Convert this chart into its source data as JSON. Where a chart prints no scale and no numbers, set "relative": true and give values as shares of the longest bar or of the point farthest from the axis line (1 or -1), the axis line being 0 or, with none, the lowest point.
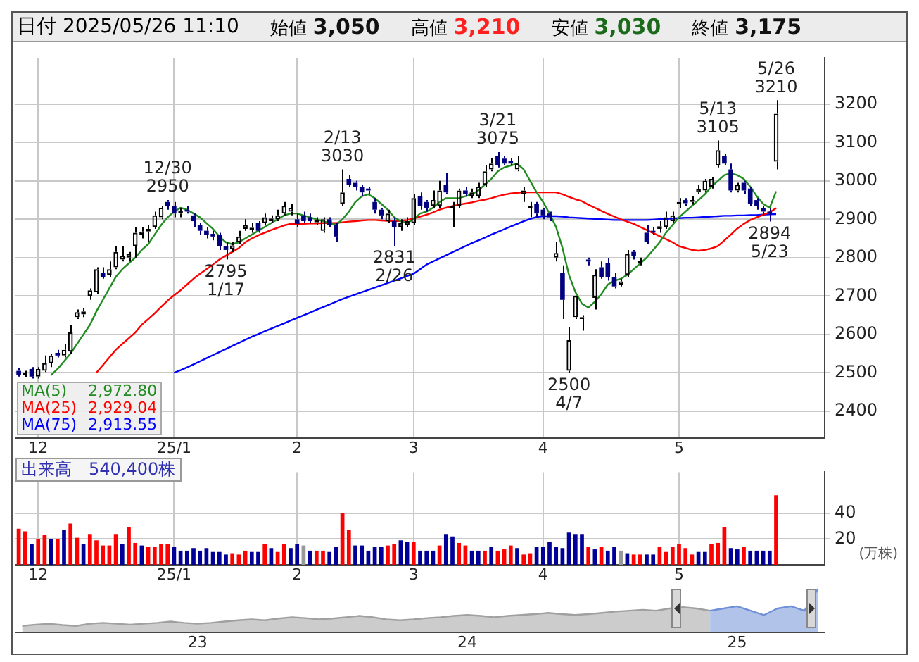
{
  "chart_data": [
    {
      "type": "other",
      "title": "日付 2025/05/26 11:10",
      "annotations": [
        "始値 3,050",
        "高値 3,210",
        "安値 3,030",
        "終値 3,175"
      ]
    },
    {
      "type": "candlestick",
      "categories": [
        null,
        null,
        null,
        "12",
        null,
        null,
        null,
        null,
        null,
        null,
        null,
        null,
        null,
        null,
        null,
        null,
        null,
        null,
        null,
        null,
        null,
        null,
        null,
        null,
        "25/1",
        null,
        null,
        null,
        null,
        null,
        null,
        null,
        null,
        null,
        null,
        null,
        null,
        null,
        null,
        null,
        null,
        null,
        null,
        "2",
        null,
        null,
        null,
        null,
        null,
        null,
        null,
        null,
        null,
        null,
        null,
        null,
        null,
        null,
        null,
        null,
        null,
        "3",
        null,
        null,
        null,
        null,
        null,
        null,
        null,
        null,
        null,
        null,
        null,
        null,
        null,
        null,
        null,
        null,
        null,
        null,
        null,
        "4",
        null,
        null,
        null,
        null,
        null,
        null,
        null,
        null,
        null,
        null,
        null,
        null,
        null,
        null,
        null,
        null,
        null,
        null,
        null,
        null,
        "5",
        null,
        null,
        null,
        null,
        null,
        null,
        null,
        null,
        null,
        null,
        null,
        null,
        null,
        null,
        null,
        null,
        null,
        null,
        null,
        null,
        null,
        null
      ],
      "ohlc": [
        [
          2505,
          2512,
          2490,
          2495
        ],
        [
          2495,
          2505,
          2488,
          2500
        ],
        [
          2510,
          2515,
          2485,
          2490
        ],
        [
          2490,
          2515,
          2485,
          2510
        ],
        [
          2505,
          2545,
          2502,
          2525
        ],
        [
          2525,
          2550,
          2515,
          2545
        ],
        [
          2552,
          2560,
          2540,
          2545
        ],
        [
          2545,
          2575,
          2540,
          2560
        ],
        [
          2555,
          2625,
          2550,
          2605
        ],
        [
          2645,
          2665,
          2640,
          2658
        ],
        [
          2652,
          2668,
          2645,
          2660
        ],
        [
          2700,
          2720,
          2690,
          2715
        ],
        [
          2710,
          2775,
          2705,
          2770
        ],
        [
          2760,
          2775,
          2745,
          2750
        ],
        [
          2755,
          2790,
          2750,
          2770
        ],
        [
          2775,
          2830,
          2770,
          2815
        ],
        [
          2795,
          2830,
          2790,
          2805
        ],
        [
          2800,
          2815,
          2790,
          2810
        ],
        [
          2830,
          2880,
          2800,
          2865
        ],
        [
          2860,
          2880,
          2850,
          2868
        ],
        [
          2868,
          2885,
          2840,
          2875
        ],
        [
          2880,
          2920,
          2875,
          2910
        ],
        [
          2905,
          2935,
          2900,
          2930
        ],
        [
          2945,
          2950,
          2925,
          2935
        ],
        [
          2935,
          2945,
          2905,
          2915
        ],
        [
          2915,
          2930,
          2905,
          2922
        ],
        [
          2925,
          2935,
          2915,
          2920
        ],
        [
          2910,
          2915,
          2880,
          2895
        ],
        [
          2885,
          2890,
          2860,
          2870
        ],
        [
          2870,
          2880,
          2850,
          2860
        ],
        [
          2862,
          2870,
          2845,
          2855
        ],
        [
          2860,
          2865,
          2820,
          2830
        ],
        [
          2830,
          2840,
          2795,
          2820
        ],
        [
          2822,
          2840,
          2815,
          2832
        ],
        [
          2840,
          2870,
          2835,
          2855
        ],
        [
          2875,
          2900,
          2870,
          2885
        ],
        [
          2872,
          2890,
          2865,
          2878
        ],
        [
          2890,
          2895,
          2865,
          2870
        ],
        [
          2890,
          2915,
          2885,
          2905
        ],
        [
          2895,
          2910,
          2890,
          2902
        ],
        [
          2900,
          2925,
          2895,
          2910
        ],
        [
          2915,
          2945,
          2910,
          2935
        ],
        [
          2920,
          2940,
          2910,
          2930
        ],
        [
          2900,
          2915,
          2880,
          2888
        ],
        [
          2910,
          2920,
          2890,
          2895
        ],
        [
          2905,
          2915,
          2890,
          2895
        ],
        [
          2892,
          2905,
          2885,
          2898
        ],
        [
          2870,
          2905,
          2865,
          2900
        ],
        [
          2900,
          2905,
          2880,
          2885
        ],
        [
          2885,
          2890,
          2840,
          2855
        ],
        [
          2940,
          3030,
          2935,
          2970
        ],
        [
          3005,
          3015,
          2985,
          2990
        ],
        [
          2995,
          3000,
          2975,
          2985
        ],
        [
          2985,
          2990,
          2960,
          2970
        ],
        [
          2980,
          2985,
          2965,
          2975
        ],
        [
          2945,
          2955,
          2915,
          2925
        ],
        [
          2925,
          2930,
          2900,
          2910
        ],
        [
          2895,
          2925,
          2890,
          2915
        ],
        [
          2895,
          2905,
          2831,
          2880
        ],
        [
          2880,
          2900,
          2870,
          2890
        ],
        [
          2885,
          2905,
          2880,
          2895
        ],
        [
          2890,
          2965,
          2885,
          2955
        ],
        [
          2960,
          2970,
          2925,
          2935
        ],
        [
          2945,
          2950,
          2920,
          2930
        ],
        [
          2935,
          2975,
          2930,
          2950
        ],
        [
          2935,
          3000,
          2930,
          2975
        ],
        [
          2990,
          3020,
          2965,
          2970
        ],
        [
          2930,
          2945,
          2880,
          2935
        ],
        [
          2935,
          2980,
          2930,
          2975
        ],
        [
          2975,
          2985,
          2960,
          2965
        ],
        [
          2960,
          2980,
          2955,
          2970
        ],
        [
          2960,
          2995,
          2955,
          2985
        ],
        [
          2990,
          3040,
          2985,
          3025
        ],
        [
          3030,
          3060,
          3025,
          3045
        ],
        [
          3065,
          3075,
          3035,
          3040
        ],
        [
          3058,
          3065,
          3040,
          3045
        ],
        [
          3052,
          3060,
          3040,
          3045
        ],
        [
          3030,
          3065,
          3025,
          3045
        ],
        [
          2965,
          2985,
          2945,
          2975
        ],
        [
          2930,
          2945,
          2905,
          2935
        ],
        [
          2940,
          2945,
          2905,
          2915
        ],
        [
          2925,
          2930,
          2900,
          2910
        ],
        [
          2915,
          2920,
          2895,
          2905
        ],
        [
          2800,
          2840,
          2790,
          2812
        ],
        [
          2760,
          2780,
          2640,
          2690
        ],
        [
          2505,
          2620,
          2500,
          2585
        ],
        [
          2645,
          2700,
          2640,
          2700
        ],
        [
          2640,
          2650,
          2610,
          2645
        ],
        [
          2795,
          2800,
          2780,
          2790
        ],
        [
          2695,
          2770,
          2665,
          2755
        ],
        [
          2775,
          2790,
          2745,
          2750
        ],
        [
          2785,
          2798,
          2740,
          2750
        ],
        [
          2750,
          2760,
          2720,
          2725
        ],
        [
          2730,
          2745,
          2725,
          2738
        ],
        [
          2755,
          2820,
          2750,
          2810
        ],
        [
          2815,
          2820,
          2795,
          2805
        ],
        [
          2785,
          2800,
          2780,
          2792
        ],
        [
          2865,
          2885,
          2835,
          2840
        ],
        [
          2870,
          2880,
          2860,
          2865
        ],
        [
          2875,
          2895,
          2865,
          2882
        ],
        [
          2880,
          2920,
          2875,
          2905
        ],
        [
          2895,
          2920,
          2890,
          2910
        ],
        [
          2940,
          2955,
          2930,
          2945
        ],
        [
          2950,
          2955,
          2935,
          2942
        ],
        [
          2945,
          2960,
          2938,
          2950
        ],
        [
          2970,
          2990,
          2965,
          2978
        ],
        [
          2975,
          3005,
          2970,
          3000
        ],
        [
          2985,
          3010,
          2980,
          3005
        ],
        [
          3040,
          3105,
          3035,
          3080
        ],
        [
          3065,
          3070,
          3040,
          3045
        ],
        [
          3030,
          3045,
          2970,
          2975
        ],
        [
          2975,
          2995,
          2970,
          2990
        ],
        [
          2995,
          3000,
          2965,
          2975
        ],
        [
          2980,
          2985,
          2935,
          2940
        ],
        [
          2950,
          2955,
          2925,
          2935
        ],
        [
          2930,
          2935,
          2910,
          2920
        ],
        [
          2920,
          2930,
          2894,
          2915
        ],
        [
          3050,
          3210,
          3030,
          3175
        ],
        null,
        null,
        null,
        null,
        null,
        null,
        null
      ],
      "colors": [
        "#000080",
        "#000000",
        "#000080",
        "#000000",
        "#000000",
        "#000000",
        "#000080",
        "#000000",
        "#000000",
        "#000000",
        "#000000",
        "#000000",
        "#000000",
        "#000080",
        "#000000",
        "#000000",
        "#000000",
        "#000000",
        "#000000",
        "#000000",
        "#000000",
        "#000000",
        "#000000",
        "#000080",
        "#000080",
        "#000000",
        "#000080",
        "#000080",
        "#000080",
        "#000080",
        "#000080",
        "#000080",
        "#000080",
        "#000000",
        "#000000",
        "#000000",
        "#000000",
        "#000080",
        "#000000",
        "#000000",
        "#000000",
        "#000000",
        "#000000",
        "#000080",
        "#000080",
        "#000080",
        "#000000",
        "#000000",
        "#000080",
        "#000080",
        "#000000",
        "#000080",
        "#000080",
        "#000080",
        "#000080",
        "#000080",
        "#000080",
        "#000000",
        "#000080",
        "#000000",
        "#000000",
        "#000000",
        "#000080",
        "#000080",
        "#000000",
        "#000000",
        "#000080",
        "#000000",
        "#000000",
        "#000080",
        "#000000",
        "#000000",
        "#000000",
        "#000000",
        "#000080",
        "#000080",
        "#000080",
        "#000000",
        "#000000",
        "#000000",
        "#000080",
        "#000080",
        "#000080",
        "#000000",
        "#000080",
        "#000000",
        "#000000",
        "#000000",
        "#000080",
        "#000000",
        "#000080",
        "#000080",
        "#000080",
        "#000000",
        "#000000",
        "#000080",
        "#000000",
        "#000080",
        "#000080",
        "#000000",
        "#000000",
        "#000000",
        "#000000",
        "#000080",
        "#000000",
        "#000000",
        "#000000",
        "#000000",
        "#000000",
        "#000080",
        "#000080",
        "#000000",
        "#000080",
        "#000080",
        "#000080",
        "#000080",
        "#000080",
        "#000000",
        null,
        null,
        null,
        null,
        null,
        null,
        null
      ],
      "series": [
        {
          "type": "line",
          "name": "MA(5)",
          "color": "#228b22",
          "values": [
            null,
            null,
            null,
            null,
            null,
            2494,
            2510,
            2530,
            2550,
            2575,
            2600,
            2625,
            2660,
            2690,
            2720,
            2750,
            2770,
            2785,
            2800,
            2820,
            2835,
            2860,
            2885,
            2905,
            2920,
            2930,
            2925,
            2915,
            2905,
            2890,
            2875,
            2855,
            2840,
            2835,
            2840,
            2850,
            2860,
            2870,
            2880,
            2890,
            2900,
            2910,
            2915,
            2915,
            2910,
            2905,
            2900,
            2895,
            2890,
            2885,
            2900,
            2920,
            2945,
            2960,
            2965,
            2955,
            2940,
            2925,
            2905,
            2895,
            2890,
            2900,
            2915,
            2920,
            2930,
            2945,
            2955,
            2955,
            2955,
            2960,
            2965,
            2975,
            2990,
            3005,
            3025,
            3035,
            3040,
            3045,
            3030,
            3000,
            2970,
            2945,
            2915,
            2880,
            2825,
            2755,
            2710,
            2680,
            2670,
            2685,
            2705,
            2730,
            2740,
            2745,
            2755,
            2770,
            2785,
            2800,
            2820,
            2840,
            2865,
            2885,
            2905,
            2920,
            2935,
            2950,
            2965,
            2985,
            3000,
            3015,
            3020,
            3015,
            3005,
            2985,
            2960,
            2940,
            2930,
            2972.8,
            null,
            null,
            null,
            null,
            null,
            null,
            null
          ]
        },
        {
          "type": "line",
          "name": "MA(25)",
          "color": "#ff0000",
          "values": [
            null,
            null,
            null,
            null,
            null,
            null,
            null,
            null,
            null,
            null,
            null,
            null,
            2500,
            2520,
            2540,
            2560,
            2575,
            2590,
            2605,
            2625,
            2640,
            2655,
            2672,
            2688,
            2702,
            2715,
            2730,
            2745,
            2758,
            2770,
            2782,
            2795,
            2805,
            2815,
            2825,
            2840,
            2850,
            2858,
            2865,
            2872,
            2878,
            2884,
            2888,
            2888,
            2888,
            2889,
            2889,
            2890,
            2890,
            2890,
            2892,
            2894,
            2895,
            2897,
            2898,
            2898,
            2897,
            2896,
            2895,
            2896,
            2898,
            2902,
            2907,
            2912,
            2918,
            2925,
            2930,
            2934,
            2938,
            2941,
            2944,
            2948,
            2951,
            2955,
            2960,
            2964,
            2967,
            2969,
            2970,
            2970,
            2970,
            2970,
            2970,
            2970,
            2965,
            2958,
            2952,
            2947,
            2938,
            2930,
            2922,
            2914,
            2907,
            2900,
            2894,
            2888,
            2880,
            2872,
            2864,
            2856,
            2848,
            2840,
            2830,
            2825,
            2820,
            2818,
            2820,
            2824,
            2830,
            2845,
            2860,
            2876,
            2888,
            2898,
            2905,
            2912,
            2918,
            2929.04,
            null,
            null,
            null,
            null,
            null,
            null,
            null
          ]
        },
        {
          "type": "line",
          "name": "MA(75)",
          "color": "#0000ff",
          "values": [
            null,
            null,
            null,
            null,
            null,
            null,
            null,
            null,
            null,
            null,
            null,
            null,
            null,
            null,
            null,
            null,
            null,
            null,
            null,
            null,
            null,
            null,
            null,
            null,
            2500,
            2507,
            2514,
            2522,
            2530,
            2538,
            2546,
            2554,
            2562,
            2570,
            2578,
            2586,
            2594,
            2601,
            2608,
            2615,
            2622,
            2629,
            2636,
            2643,
            2650,
            2657,
            2664,
            2671,
            2678,
            2685,
            2692,
            2698,
            2704,
            2710,
            2716,
            2722,
            2728,
            2734,
            2740,
            2746,
            2752,
            2758,
            2770,
            2782,
            2790,
            2798,
            2806,
            2814,
            2822,
            2830,
            2838,
            2845,
            2852,
            2860,
            2867,
            2874,
            2881,
            2888,
            2895,
            2901,
            2906,
            2908,
            2908,
            2908,
            2907,
            2905,
            2904,
            2903,
            2902,
            2901,
            2900,
            2899,
            2898,
            2898,
            2898,
            2898,
            2898,
            2898,
            2899,
            2900,
            2901,
            2902,
            2903,
            2904,
            2904,
            2905,
            2906,
            2907,
            2908,
            2909,
            2909,
            2910,
            2910,
            2911,
            2911,
            2912,
            2913,
            2913.55,
            null,
            null,
            null,
            null,
            null,
            null,
            null
          ]
        }
      ],
      "ylim": [
        2330,
        3320
      ],
      "yticks": [
        2400,
        2500,
        2600,
        2700,
        2800,
        2900,
        3000,
        3100,
        3200
      ],
      "grid": true,
      "legend": "bottom left",
      "annotations": [
        {
          "text": "12/30\n2950",
          "y": 2950
        },
        {
          "text": "2795\n1/17",
          "y": 2795
        },
        {
          "text": "2/13\n3030",
          "y": 3030
        },
        {
          "text": "2831\n2/26",
          "y": 2831
        },
        {
          "text": "3/21\n3075",
          "y": 3075
        },
        {
          "text": "2500\n4/7",
          "y": 2500
        },
        {
          "text": "5/13\n3105",
          "y": 3105
        },
        {
          "text": "2894\n5/23",
          "y": 2894
        },
        {
          "text": "5/26\n3210",
          "y": 3210
        },
        "2,972.80",
        "2,929.04",
        "2,913.55"
      ]
    },
    {
      "type": "bar",
      "title": "出来高　540,400株",
      "ylabel": "(万株)",
      "categories": [
        null,
        null,
        null,
        "12",
        null,
        null,
        null,
        null,
        null,
        null,
        null,
        null,
        null,
        null,
        null,
        null,
        null,
        null,
        null,
        null,
        null,
        null,
        null,
        null,
        "25/1",
        null,
        null,
        null,
        null,
        null,
        null,
        null,
        null,
        null,
        null,
        null,
        null,
        null,
        null,
        null,
        null,
        null,
        null,
        "2",
        null,
        null,
        null,
        null,
        null,
        null,
        null,
        null,
        null,
        null,
        null,
        null,
        null,
        null,
        null,
        null,
        null,
        "3",
        null,
        null,
        null,
        null,
        null,
        null,
        null,
        null,
        null,
        null,
        null,
        null,
        null,
        null,
        null,
        null,
        null,
        null,
        null,
        "4",
        null,
        null,
        null,
        null,
        null,
        null,
        null,
        null,
        null,
        null,
        null,
        null,
        null,
        null,
        null,
        null,
        null,
        null,
        null,
        null,
        "5",
        null,
        null,
        null,
        null,
        null,
        null,
        null,
        null,
        null,
        null,
        null,
        null,
        null,
        null,
        null,
        null,
        null,
        null,
        null,
        null,
        null,
        null
      ],
      "values": [
        28,
        26,
        16,
        20,
        23,
        20,
        20,
        27,
        32,
        21,
        16,
        24,
        19,
        15,
        15,
        24,
        16,
        29,
        17,
        15,
        14,
        14,
        16,
        16,
        14,
        11,
        11,
        13,
        11,
        13,
        10,
        10,
        8,
        9,
        8,
        11,
        10,
        10,
        16,
        13,
        10,
        16,
        13,
        16,
        15,
        11,
        11,
        11,
        10,
        14,
        40,
        27,
        15,
        15,
        11,
        14,
        14,
        15,
        16,
        19,
        18,
        18,
        11,
        11,
        11,
        15,
        24,
        22,
        17,
        15,
        11,
        11,
        11,
        14,
        11,
        12,
        15,
        13,
        8,
        9,
        14,
        14,
        18,
        14,
        13,
        25,
        24,
        24,
        14,
        12,
        14,
        11,
        14,
        11,
        9,
        8,
        8,
        8,
        8,
        14,
        10,
        14,
        16,
        13,
        8,
        10,
        10,
        16,
        17,
        29,
        13,
        12,
        14,
        11,
        11,
        11,
        11,
        54.04,
        null,
        null,
        null,
        null,
        null,
        null,
        null
      ],
      "colors": [
        "#ff0000",
        "#ff0000",
        "#000099",
        "#ff0000",
        "#ff0000",
        "#000099",
        "#ff0000",
        "#000099",
        "#ff0000",
        "#ff0000",
        "#000099",
        "#ff0000",
        "#ff0000",
        "#ff0000",
        "#ff0000",
        "#ff0000",
        "#000099",
        "#ff0000",
        "#ff0000",
        "#000099",
        "#ff0000",
        "#ff0000",
        "#ff0000",
        "#ff0000",
        "#000099",
        "#000099",
        "#000099",
        "#000099",
        "#000099",
        "#000099",
        "#000099",
        "#000099",
        "#000099",
        "#ff0000",
        "#ff0000",
        "#ff0000",
        "#000099",
        "#000099",
        "#ff0000",
        "#000099",
        "#ff0000",
        "#ff0000",
        "#000099",
        "#000099",
        "#999999",
        "#000099",
        "#ff0000",
        "#ff0000",
        "#000099",
        "#000099",
        "#ff0000",
        "#ff0000",
        "#000099",
        "#000099",
        "#000099",
        "#000099",
        "#000099",
        "#ff0000",
        "#ff0000",
        "#000099",
        "#000099",
        "#ff0000",
        "#000099",
        "#000099",
        "#000099",
        "#ff0000",
        "#000099",
        "#000099",
        "#ff0000",
        "#ff0000",
        "#000099",
        "#000099",
        "#ff0000",
        "#000099",
        "#ff0000",
        "#ff0000",
        "#ff0000",
        "#000099",
        "#ff0000",
        "#ff0000",
        "#000099",
        "#000099",
        "#000099",
        "#000099",
        "#000099",
        "#000099",
        "#000099",
        "#000099",
        "#ff0000",
        "#000099",
        "#ff0000",
        "#000099",
        "#000099",
        "#999999",
        "#000099",
        "#ff0000",
        "#ff0000",
        "#000099",
        "#000099",
        "#ff0000",
        "#ff0000",
        "#ff0000",
        "#ff0000",
        "#ff0000",
        "#ff0000",
        "#000099",
        "#000099",
        "#ff0000",
        "#ff0000",
        "#ff0000",
        "#000099",
        "#000099",
        "#ff0000",
        "#000099",
        "#000099",
        "#000099",
        "#000099",
        "#ff0000",
        null,
        null,
        null,
        null,
        null,
        null,
        null
      ],
      "ylim": [
        0,
        72
      ],
      "yticks": [
        20,
        40
      ],
      "grid": true
    },
    {
      "type": "area",
      "relative": true,
      "categories": [
        null,
        null,
        null,
        null,
        null,
        null,
        null,
        null,
        null,
        null,
        null,
        null,
        null,
        "23",
        null,
        null,
        null,
        null,
        null,
        null,
        null,
        null,
        null,
        null,
        null,
        null,
        null,
        null,
        null,
        null,
        null,
        null,
        null,
        "24",
        null,
        null,
        null,
        null,
        null,
        null,
        null,
        null,
        null,
        null,
        null,
        null,
        null,
        null,
        null,
        null,
        null,
        null,
        null,
        "25",
        null,
        null,
        null,
        null,
        null,
        null
      ],
      "series": [
        {
          "color": "#a0a0a0",
          "values": [
            0.15,
            0.18,
            0.2,
            0.17,
            0.15,
            0.2,
            0.22,
            0.2,
            0.18,
            0.2,
            0.22,
            0.25,
            0.22,
            0.2,
            0.22,
            0.25,
            0.28,
            0.3,
            0.28,
            0.32,
            0.35,
            0.33,
            0.3,
            0.32,
            0.35,
            0.38,
            0.35,
            0.3,
            0.28,
            0.3,
            0.33,
            0.35,
            0.38,
            0.4,
            0.38,
            0.35,
            0.38,
            0.4,
            0.42,
            0.45,
            0.42,
            0.4,
            0.42,
            0.45,
            0.48,
            0.5,
            0.52,
            0.5,
            0.55,
            0.58,
            0.55,
            0.5,
            null,
            null,
            null,
            null,
            null,
            null,
            null,
            null
          ]
        },
        {
          "color": "#6f8fd8",
          "values": [
            null,
            null,
            null,
            null,
            null,
            null,
            null,
            null,
            null,
            null,
            null,
            null,
            null,
            null,
            null,
            null,
            null,
            null,
            null,
            null,
            null,
            null,
            null,
            null,
            null,
            null,
            null,
            null,
            null,
            null,
            null,
            null,
            null,
            null,
            null,
            null,
            null,
            null,
            null,
            null,
            null,
            null,
            null,
            null,
            null,
            null,
            null,
            null,
            null,
            null,
            null,
            0.5,
            0.55,
            0.6,
            0.5,
            0.4,
            0.55,
            0.6,
            0.5,
            1
          ]
        }
      ]
    }
  ]
}
